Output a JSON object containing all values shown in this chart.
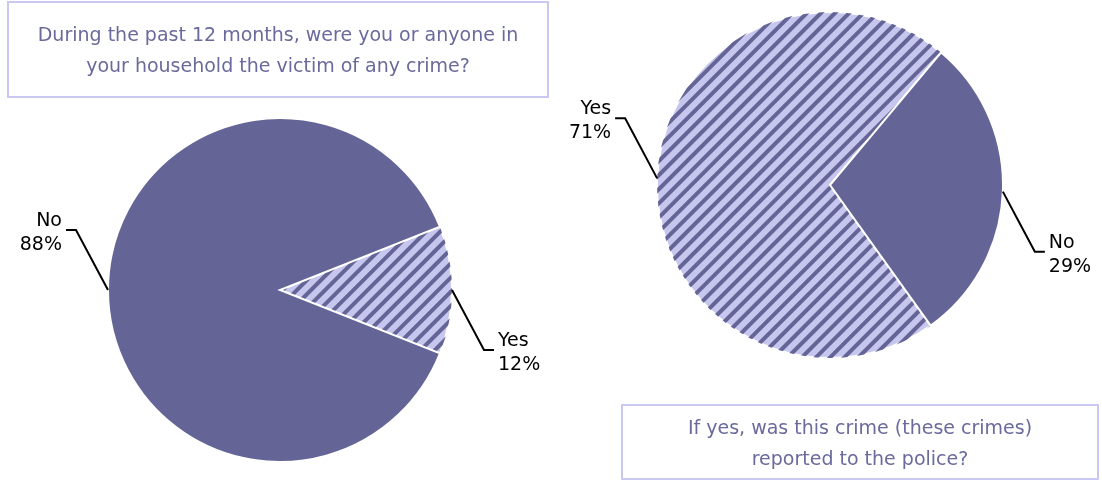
{
  "chart_data": [
    {
      "type": "pie",
      "title": "During the past 12 months, were you or anyone in your household the victim of any crime?",
      "categories": [
        "Yes",
        "No"
      ],
      "values": [
        12,
        88
      ],
      "colors": [
        "#c6c6ee",
        "#646496"
      ],
      "value_labels": [
        "12%",
        "88%"
      ]
    },
    {
      "type": "pie",
      "title": "If yes, was this crime (these crimes) reported to the police?",
      "categories": [
        "Yes",
        "No"
      ],
      "values": [
        71,
        29
      ],
      "colors": [
        "#c6c6ee",
        "#646496"
      ],
      "value_labels": [
        "71%",
        "29%"
      ]
    }
  ]
}
